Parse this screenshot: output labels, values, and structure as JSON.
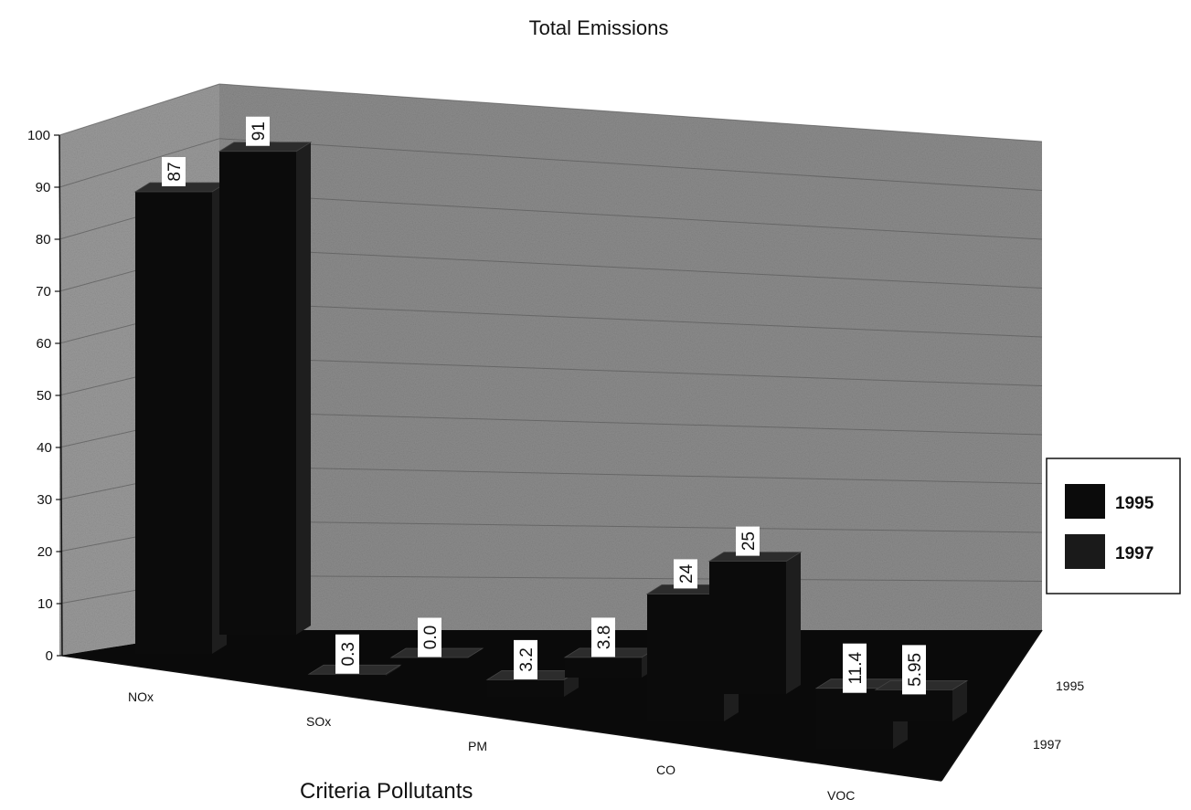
{
  "chart_data": {
    "type": "bar",
    "title": "Total Emissions",
    "xlabel": "Criteria Pollutants",
    "ylabel": "",
    "ylim": [
      0,
      100
    ],
    "yticks": [
      0,
      10,
      20,
      30,
      40,
      50,
      60,
      70,
      80,
      90,
      100
    ],
    "categories": [
      "NOx",
      "SOx",
      "PM",
      "CO",
      "VOC"
    ],
    "series": [
      {
        "name": "1995",
        "values": [
          87,
          0.3,
          3.2,
          24,
          11.4
        ],
        "labels": [
          "87",
          "0.3",
          "3.2",
          "24",
          "11.4"
        ]
      },
      {
        "name": "1997",
        "values": [
          91,
          0.0,
          3.8,
          25,
          5.95
        ],
        "labels": [
          "91",
          "0.0",
          "3.8",
          "25",
          "5.95"
        ]
      }
    ],
    "legend": {
      "position": "right",
      "entries": [
        "1995",
        "1997"
      ]
    },
    "grid": true,
    "colors": {
      "bar": "#0b0b0b",
      "bar_side": "#1e1e1e",
      "bar_top": "#2c2c2c",
      "wall": "#8c8c8c",
      "floor": "#0a0a0a"
    }
  }
}
